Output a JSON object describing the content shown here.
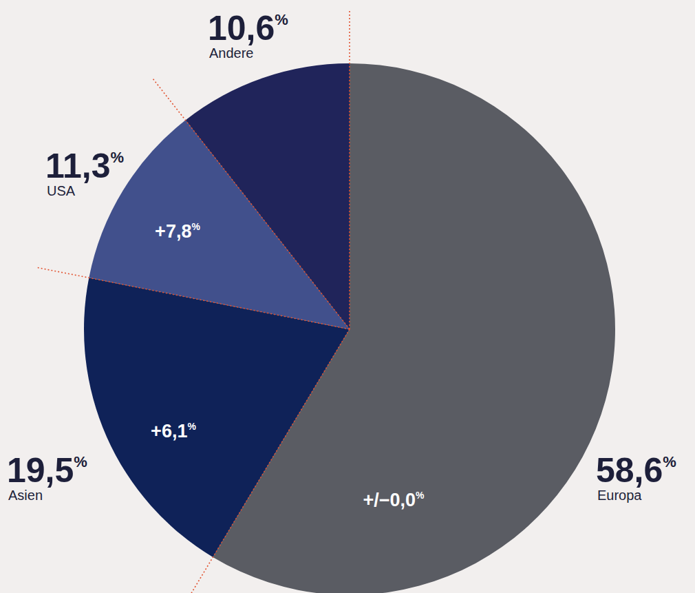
{
  "chart_data": {
    "type": "pie",
    "categories": [
      "Europa",
      "Asien",
      "USA",
      "Andere"
    ],
    "values": [
      58.6,
      19.5,
      11.3,
      10.6
    ],
    "value_labels": [
      "58,6%",
      "19,5%",
      "11,3%",
      "10,6%"
    ],
    "growth": [
      0,
      6.1,
      7.8,
      null
    ],
    "growth_labels": [
      "+/−0,0%",
      "+6,1%",
      "+7,8%",
      null
    ],
    "colors": [
      "#5a5c63",
      "#0f2258",
      "#41508c",
      "#20245a"
    ],
    "data_labels": true
  }
}
